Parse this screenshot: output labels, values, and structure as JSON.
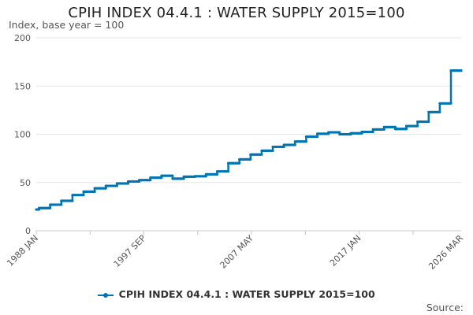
{
  "chart_data": {
    "type": "line",
    "title": "CPIH INDEX 04.4.1 : WATER SUPPLY 2015=100",
    "ylabel": "Index, base year = 100",
    "xlabel": "",
    "ylim": [
      0,
      200
    ],
    "yticks": [
      0,
      50,
      100,
      150,
      200
    ],
    "xlim": [
      1988.0,
      2026.17
    ],
    "xticks": [
      {
        "value": 1988.0,
        "label": "1988 JAN"
      },
      {
        "value": 1997.67,
        "label": "1997 SEP"
      },
      {
        "value": 2007.33,
        "label": "2007 MAY"
      },
      {
        "value": 2017.0,
        "label": "2017 JAN"
      },
      {
        "value": 2026.17,
        "label": "2026 MAR"
      }
    ],
    "series": [
      {
        "name": "CPIH INDEX 04.4.1 : WATER SUPPLY 2015=100",
        "color": "#0075b3",
        "x": [
          1988.0,
          1988.25,
          1989.25,
          1990.25,
          1991.25,
          1992.25,
          1993.25,
          1994.25,
          1995.25,
          1996.25,
          1997.25,
          1998.25,
          1999.25,
          2000.25,
          2001.25,
          2002.25,
          2003.25,
          2004.25,
          2005.25,
          2006.25,
          2007.25,
          2008.25,
          2009.25,
          2010.25,
          2011.25,
          2012.25,
          2013.25,
          2014.25,
          2015.25,
          2016.25,
          2017.25,
          2018.25,
          2019.25,
          2020.25,
          2021.25,
          2022.25,
          2023.25,
          2024.25,
          2025.25,
          2026.17
        ],
        "values": [
          22,
          23.5,
          27,
          31,
          37,
          40.5,
          44,
          46.5,
          49,
          51,
          52.5,
          55,
          57,
          54,
          56,
          56.5,
          58.5,
          61.5,
          70,
          74,
          79,
          83,
          87,
          89,
          92.5,
          97.5,
          100.5,
          102,
          100,
          101,
          102.5,
          105,
          107.5,
          105.5,
          108.5,
          113,
          123,
          132,
          166,
          166
        ]
      }
    ]
  },
  "legend": {
    "label": "CPIH INDEX 04.4.1 : WATER SUPPLY 2015=100"
  },
  "source": {
    "label": "Source:"
  }
}
